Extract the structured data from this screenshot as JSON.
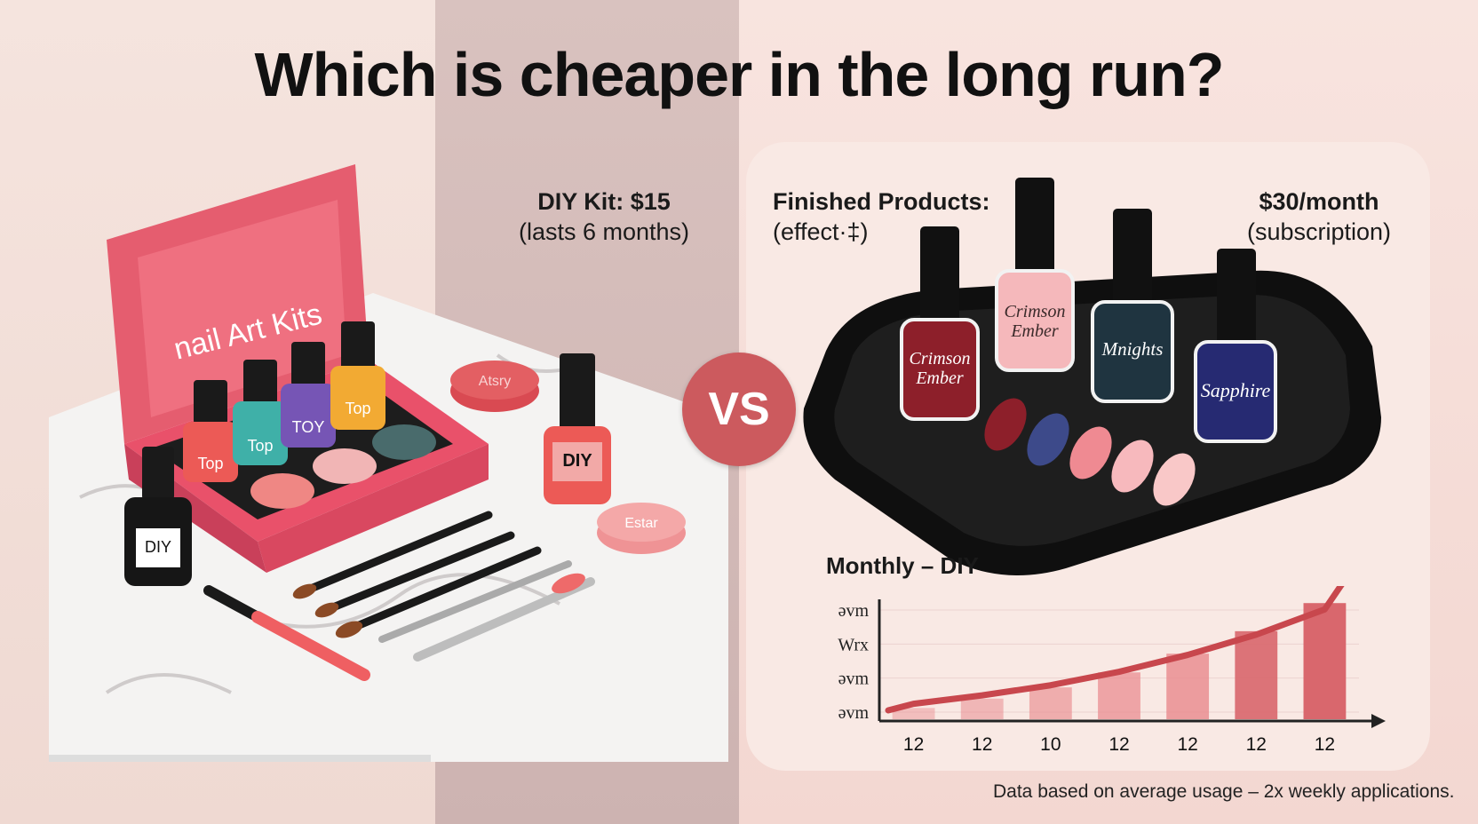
{
  "header": {
    "title": "Which is cheaper in the long run?"
  },
  "diy": {
    "line1": "DIY Kit: $15",
    "line2": "(lasts 6 months)",
    "box_label": "nail Art Kits",
    "bottle_labels": [
      "Top",
      "Top",
      "TOY",
      "Top",
      "DIY",
      "DIY"
    ],
    "jar_labels": [
      "Atsry",
      "Estar"
    ]
  },
  "finished": {
    "line1": "Finished Products:",
    "line2": "(effect·‡)",
    "price1": "$30/month",
    "price2": "(subscription)",
    "bottles": [
      {
        "label": "Crimson\nEmber",
        "color": "#8d1f2a"
      },
      {
        "label": "Crimson\nEmber",
        "color": "#f5b8bb"
      },
      {
        "label": "Mnights",
        "color": "#1f3440"
      },
      {
        "label": "Sapphire",
        "color": "#262a72"
      }
    ]
  },
  "vs_label": "VS",
  "chart_data": {
    "type": "bar",
    "title": "Monthly –  DIY",
    "categories": [
      "12",
      "12",
      "10",
      "12",
      "12",
      "12",
      "12"
    ],
    "values": [
      0.3,
      0.55,
      0.85,
      1.25,
      1.75,
      2.35,
      3.1
    ],
    "y_tick_labels": [
      "əvm",
      "Wrx",
      "əvm",
      "əvm"
    ],
    "trend": "rising curve with arrow",
    "colors": {
      "bars_light": "#f6cfd0",
      "bars_dark": "#d9676d",
      "curve": "#c8474d"
    }
  },
  "footnote": "Data based on average usage – 2x weekly applications."
}
